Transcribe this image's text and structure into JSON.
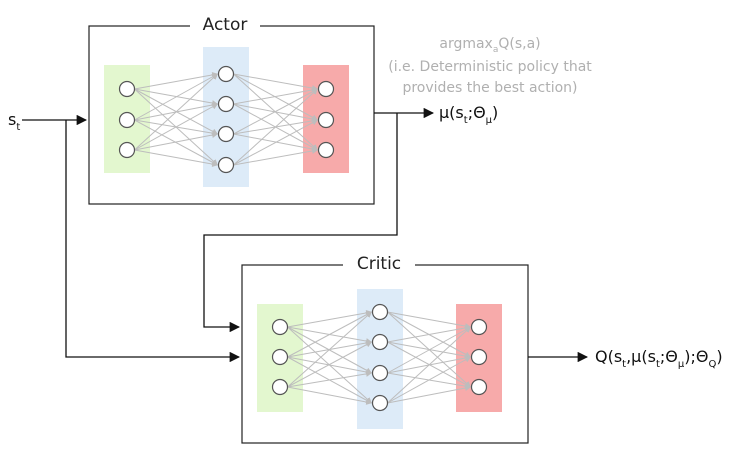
{
  "actor": {
    "title": "Actor"
  },
  "critic": {
    "title": "Critic"
  },
  "input": {
    "label": "s",
    "sub": "t"
  },
  "actor_output": {
    "text": "μ(s",
    "sub1": "t",
    "mid": ";Θ",
    "sub2": "μ",
    "end": ")"
  },
  "critic_output": {
    "p1": "Q(s",
    "s1": "t",
    "p2": ",μ(s",
    "s2": "t",
    "p3": ";Θ",
    "s3": "μ",
    "p4": ");Θ",
    "s4": "Q",
    "p5": ")"
  },
  "note": {
    "line1_a": "argmax",
    "line1_sub": "a",
    "line1_b": "Q(s,a)",
    "line2": "(i.e. Deterministic policy that",
    "line3": "provides the best action)"
  },
  "colors": {
    "input_layer": "#e3f7cf",
    "hidden_layer": "#ddebf8",
    "output_layer": "#f7aaaa"
  },
  "networks": [
    {
      "id": "actor",
      "layers": [
        3,
        4,
        3
      ]
    },
    {
      "id": "critic",
      "layers": [
        3,
        4,
        3
      ]
    }
  ]
}
